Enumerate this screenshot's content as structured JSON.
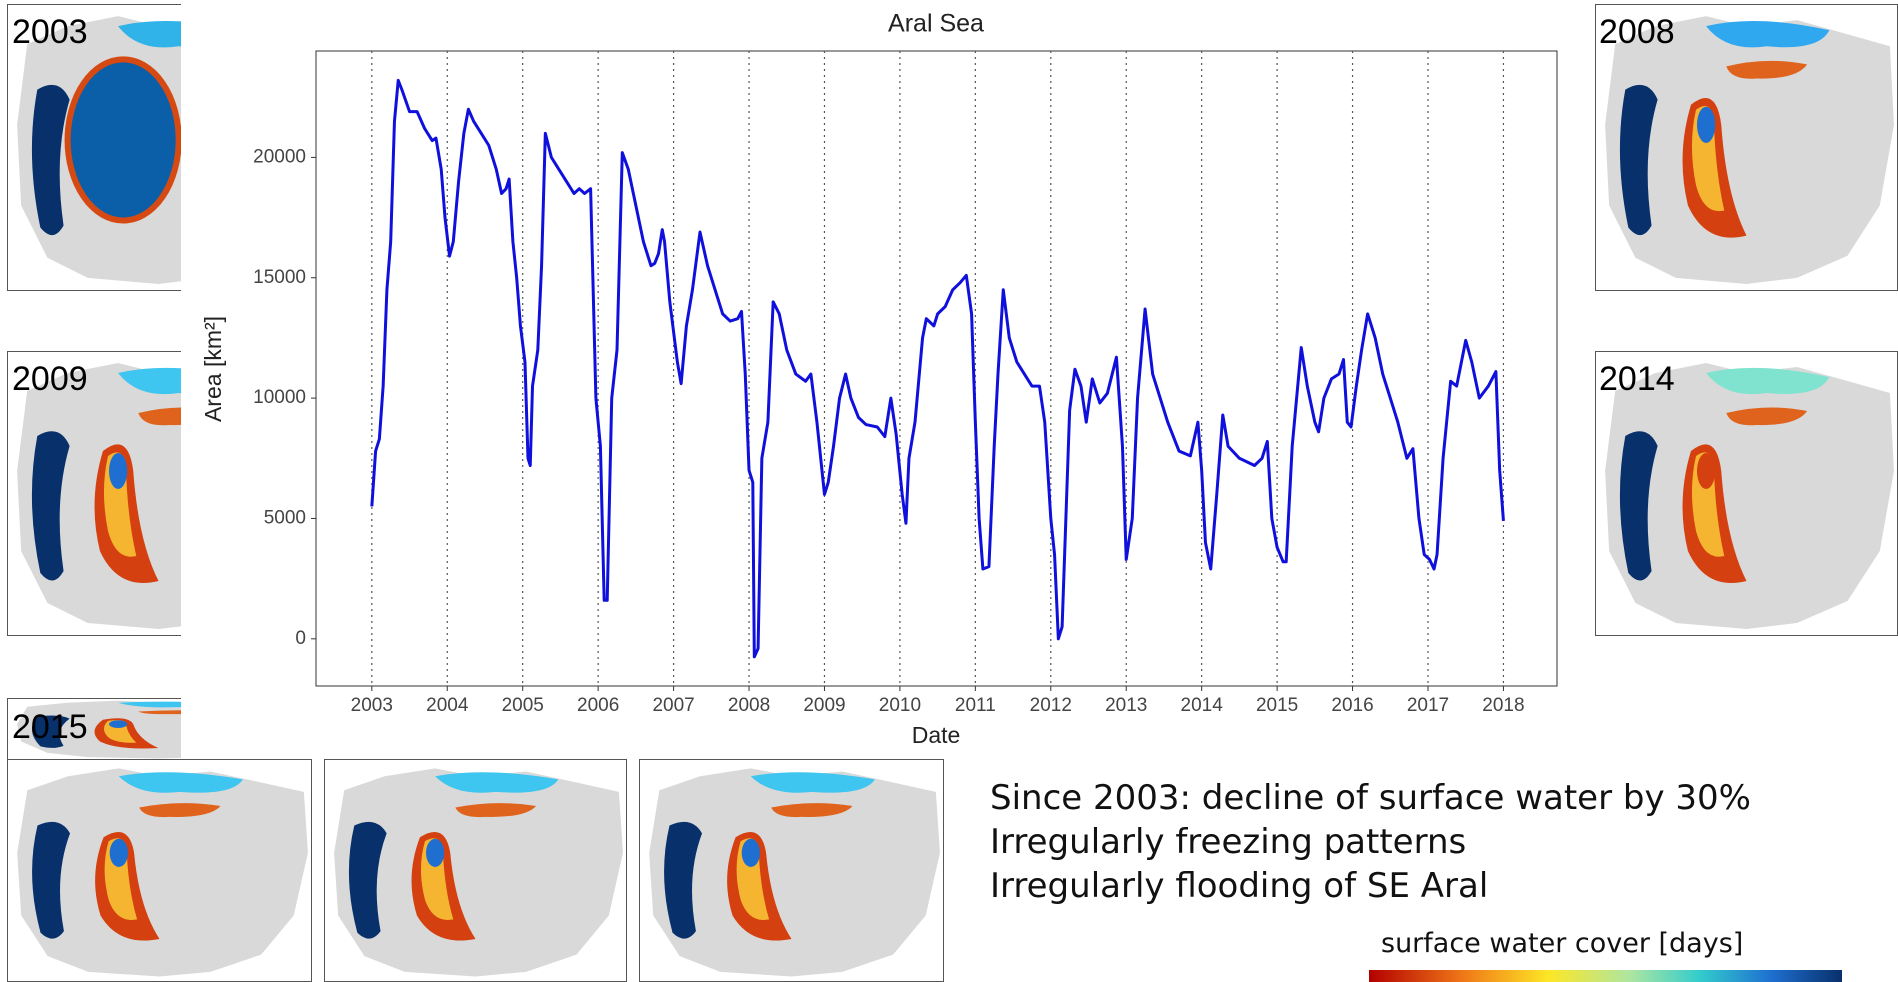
{
  "chart_data": {
    "type": "line",
    "title": "Aral Sea",
    "x_label": "Date",
    "y_label": "Area [km²]",
    "color": "#1010dd",
    "xgrid": true,
    "xlim": [
      2002.26,
      2018.71
    ],
    "ylim": [
      -1960,
      24420
    ],
    "xticks": [
      2003,
      2004,
      2005,
      2006,
      2007,
      2008,
      2009,
      2010,
      2011,
      2012,
      2013,
      2014,
      2015,
      2016,
      2017,
      2018
    ],
    "yticks": [
      0,
      5000,
      10000,
      15000,
      20000
    ],
    "x": [
      2003.0,
      2003.05,
      2003.1,
      2003.15,
      2003.2,
      2003.25,
      2003.3,
      2003.35,
      2003.4,
      2003.5,
      2003.6,
      2003.7,
      2003.8,
      2003.85,
      2003.92,
      2003.97,
      2004.03,
      2004.08,
      2004.15,
      2004.22,
      2004.28,
      2004.35,
      2004.45,
      2004.55,
      2004.65,
      2004.72,
      2004.78,
      2004.82,
      2004.87,
      2004.92,
      2004.97,
      2005.03,
      2005.07,
      2005.1,
      2005.13,
      2005.2,
      2005.25,
      2005.3,
      2005.38,
      2005.48,
      2005.58,
      2005.68,
      2005.75,
      2005.82,
      2005.9,
      2005.93,
      2005.97,
      2006.03,
      2006.08,
      2006.12,
      2006.18,
      2006.25,
      2006.32,
      2006.4,
      2006.5,
      2006.6,
      2006.7,
      2006.75,
      2006.8,
      2006.85,
      2006.88,
      2006.95,
      2007.05,
      2007.1,
      2007.17,
      2007.25,
      2007.35,
      2007.45,
      2007.55,
      2007.65,
      2007.75,
      2007.85,
      2007.9,
      2007.95,
      2008.0,
      2008.05,
      2008.07,
      2008.12,
      2008.17,
      2008.25,
      2008.32,
      2008.4,
      2008.5,
      2008.62,
      2008.75,
      2008.82,
      2008.9,
      2009.0,
      2009.05,
      2009.12,
      2009.2,
      2009.28,
      2009.35,
      2009.45,
      2009.55,
      2009.7,
      2009.8,
      2009.88,
      2009.95,
      2010.03,
      2010.08,
      2010.12,
      2010.2,
      2010.3,
      2010.35,
      2010.45,
      2010.5,
      2010.6,
      2010.7,
      2010.8,
      2010.88,
      2010.95,
      2011.0,
      2011.05,
      2011.1,
      2011.18,
      2011.25,
      2011.3,
      2011.37,
      2011.45,
      2011.55,
      2011.65,
      2011.75,
      2011.85,
      2011.92,
      2012.0,
      2012.05,
      2012.1,
      2012.15,
      2012.2,
      2012.25,
      2012.32,
      2012.4,
      2012.47,
      2012.55,
      2012.65,
      2012.75,
      2012.87,
      2012.95,
      2013.0,
      2013.08,
      2013.15,
      2013.25,
      2013.35,
      2013.45,
      2013.55,
      2013.7,
      2013.85,
      2013.95,
      2014.0,
      2014.05,
      2014.12,
      2014.2,
      2014.28,
      2014.35,
      2014.5,
      2014.7,
      2014.8,
      2014.87,
      2014.93,
      2015.0,
      2015.08,
      2015.12,
      2015.2,
      2015.32,
      2015.4,
      2015.5,
      2015.55,
      2015.62,
      2015.72,
      2015.82,
      2015.88,
      2015.93,
      2015.98,
      2016.05,
      2016.12,
      2016.2,
      2016.3,
      2016.4,
      2016.5,
      2016.6,
      2016.72,
      2016.8,
      2016.88,
      2016.95,
      2017.02,
      2017.08,
      2017.12,
      2017.2,
      2017.3,
      2017.38,
      2017.5,
      2017.58,
      2017.68,
      2017.8,
      2017.9,
      2017.95,
      2018.0
    ],
    "values": [
      5500,
      7800,
      8300,
      10500,
      14500,
      16500,
      21500,
      23200,
      22800,
      21900,
      21900,
      21200,
      20700,
      20800,
      19500,
      17500,
      15900,
      16500,
      19000,
      21000,
      22000,
      21500,
      21000,
      20500,
      19500,
      18500,
      18700,
      19100,
      16500,
      15000,
      13000,
      11500,
      7500,
      7200,
      10500,
      12000,
      15500,
      21000,
      20000,
      19500,
      19000,
      18500,
      18700,
      18500,
      18700,
      15000,
      10000,
      8000,
      1600,
      1600,
      10000,
      12000,
      20200,
      19500,
      18000,
      16500,
      15500,
      15600,
      16000,
      17000,
      16500,
      14000,
      11500,
      10600,
      13000,
      14500,
      16900,
      15500,
      14500,
      13500,
      13200,
      13300,
      13600,
      11000,
      7000,
      6500,
      -750,
      -400,
      7500,
      9000,
      14000,
      13500,
      12000,
      11000,
      10700,
      11000,
      9000,
      6000,
      6500,
      8000,
      10000,
      11000,
      10000,
      9200,
      8900,
      8800,
      8400,
      10000,
      8500,
      6000,
      4800,
      7500,
      9000,
      12500,
      13300,
      13000,
      13500,
      13800,
      14500,
      14800,
      15100,
      13500,
      9000,
      5000,
      2900,
      3000,
      8000,
      11000,
      14500,
      12500,
      11500,
      11000,
      10500,
      10500,
      9000,
      5000,
      3500,
      0,
      500,
      5000,
      9500,
      11200,
      10500,
      9000,
      10800,
      9800,
      10200,
      11700,
      8000,
      3300,
      5000,
      10000,
      13700,
      11000,
      10000,
      9000,
      7800,
      7600,
      9000,
      7000,
      4000,
      2900,
      6000,
      9300,
      8000,
      7500,
      7200,
      7500,
      8200,
      5000,
      3800,
      3200,
      3200,
      8000,
      12100,
      10500,
      9000,
      8600,
      10000,
      10800,
      11000,
      11600,
      9000,
      8800,
      10500,
      12000,
      13500,
      12500,
      11000,
      10000,
      9000,
      7500,
      7900,
      5000,
      3500,
      3300,
      2900,
      3500,
      7500,
      10700,
      10500,
      12400,
      11500,
      10000,
      10500,
      11100,
      7000,
      4900
    ]
  },
  "maps": [
    {
      "label": "2003"
    },
    {
      "label": "2008"
    },
    {
      "label": "2009"
    },
    {
      "label": "2014"
    },
    {
      "label": "2015"
    }
  ],
  "notes": [
    "Since 2003: decline of surface water by 30%",
    "Irregularly freezing patterns",
    "Irregularly flooding of SE Aral"
  ],
  "colorbar_title": "surface water cover [days]"
}
